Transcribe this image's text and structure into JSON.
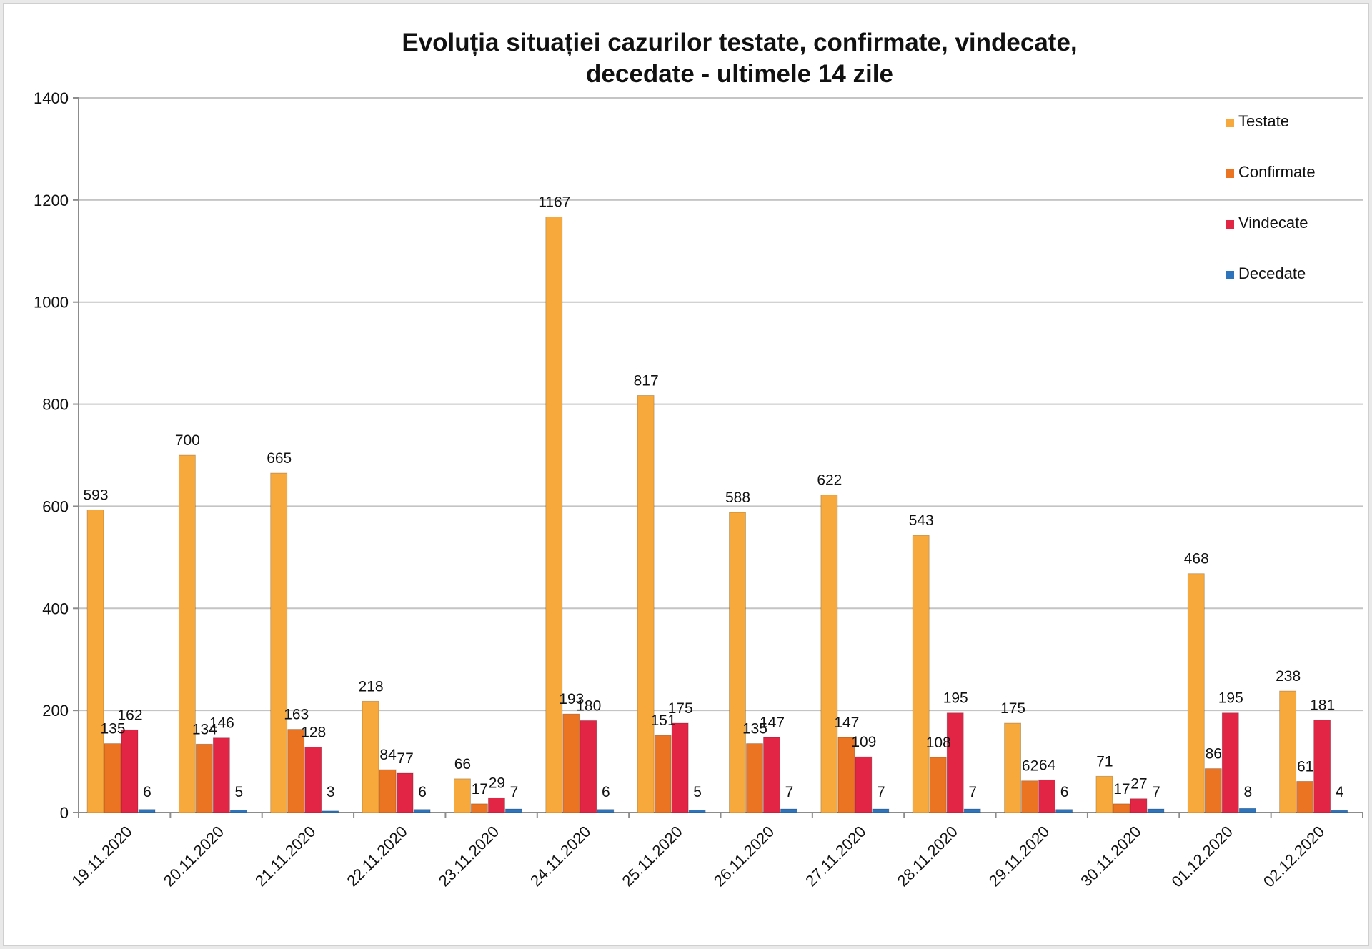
{
  "chart_data": {
    "type": "bar",
    "title": [
      "Evoluția situației cazurilor testate, confirmate, vindecate,",
      "decedate -  ultimele 14 zile"
    ],
    "xlabel": "",
    "ylabel": "",
    "ylim": [
      0,
      1400
    ],
    "yticks": [
      "0",
      "200",
      "400",
      "600",
      "800",
      "1000",
      "1200",
      "1400"
    ],
    "grid": "horizontal",
    "legend_position": "top-right",
    "categories": [
      "19.11.2020",
      "20.11.2020",
      "21.11.2020",
      "22.11.2020",
      "23.11.2020",
      "24.11.2020",
      "25.11.2020",
      "26.11.2020",
      "27.11.2020",
      "28.11.2020",
      "29.11.2020",
      "30.11.2020",
      "01.12.2020",
      "02.12.2020"
    ],
    "series": [
      {
        "name": "Testate",
        "color": "#f8a93b",
        "values": [
          593,
          700,
          665,
          218,
          66,
          1167,
          817,
          588,
          622,
          543,
          175,
          71,
          468,
          238
        ]
      },
      {
        "name": "Confirmate",
        "color": "#ea7422",
        "values": [
          135,
          134,
          163,
          84,
          17,
          193,
          151,
          135,
          147,
          108,
          62,
          17,
          86,
          61
        ]
      },
      {
        "name": "Vindecate",
        "color": "#e22545",
        "values": [
          162,
          146,
          128,
          77,
          29,
          180,
          175,
          147,
          109,
          195,
          64,
          27,
          195,
          181
        ]
      },
      {
        "name": "Decedate",
        "color": "#2d74bc",
        "values": [
          6,
          5,
          3,
          6,
          7,
          6,
          5,
          7,
          7,
          7,
          6,
          7,
          8,
          4
        ]
      }
    ]
  }
}
